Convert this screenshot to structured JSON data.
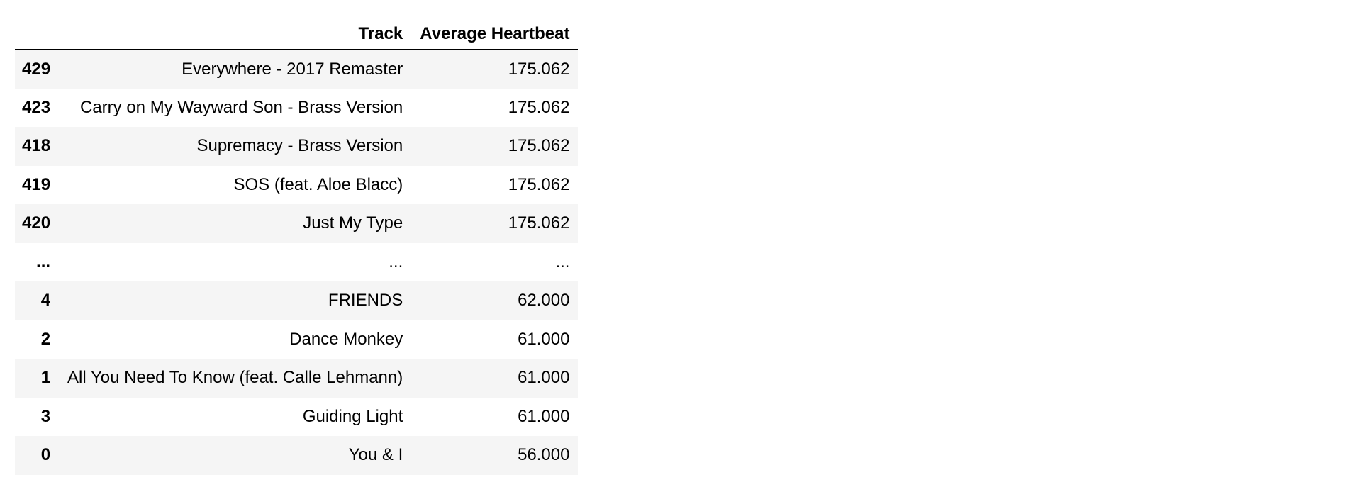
{
  "table": {
    "index_header": "",
    "columns": [
      "Track",
      "Average Heartbeat"
    ],
    "rows": [
      {
        "index": "429",
        "track": "Everywhere - 2017 Remaster",
        "heartbeat": "175.062"
      },
      {
        "index": "423",
        "track": "Carry on My Wayward Son - Brass Version",
        "heartbeat": "175.062"
      },
      {
        "index": "418",
        "track": "Supremacy - Brass Version",
        "heartbeat": "175.062"
      },
      {
        "index": "419",
        "track": "SOS (feat. Aloe Blacc)",
        "heartbeat": "175.062"
      },
      {
        "index": "420",
        "track": "Just My Type",
        "heartbeat": "175.062"
      },
      {
        "index": "...",
        "track": "...",
        "heartbeat": "..."
      },
      {
        "index": "4",
        "track": "FRIENDS",
        "heartbeat": "62.000"
      },
      {
        "index": "2",
        "track": "Dance Monkey",
        "heartbeat": "61.000"
      },
      {
        "index": "1",
        "track": "All You Need To Know (feat. Calle Lehmann)",
        "heartbeat": "61.000"
      },
      {
        "index": "3",
        "track": "Guiding Light",
        "heartbeat": "61.000"
      },
      {
        "index": "0",
        "track": "You & I",
        "heartbeat": "56.000"
      }
    ]
  },
  "colors": {
    "stripe": "#f5f5f5",
    "background": "#ffffff",
    "header_rule": "#000000"
  }
}
